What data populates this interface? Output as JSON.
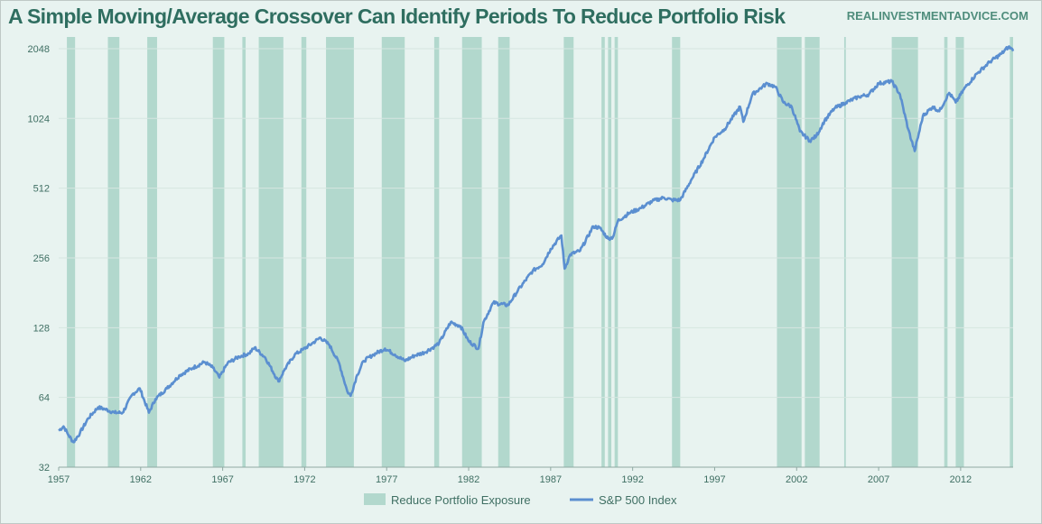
{
  "chart_data": {
    "type": "line",
    "title": "A Simple Moving/Average Crossover Can Identify Periods To Reduce Portfolio Risk",
    "source": "REALINVESTMENTADVICE.COM",
    "y_scale": "log2",
    "ylim": [
      32,
      2300
    ],
    "xlim": [
      1957,
      2015.2
    ],
    "x_ticks": [
      "1957",
      "1962",
      "1967",
      "1972",
      "1977",
      "1982",
      "1987",
      "1992",
      "1997",
      "2002",
      "2007",
      "2012"
    ],
    "y_ticks": [
      "2048",
      "1024",
      "512",
      "256",
      "128",
      "64",
      "32"
    ],
    "legend": [
      {
        "name": "Reduce Portfolio Exposure",
        "color": "#b2d8cd"
      },
      {
        "name": "S&P 500 Index",
        "color": "#5b8fd0"
      }
    ],
    "reduce_exposure_periods": [
      [
        1957.5,
        1958.0
      ],
      [
        1960.0,
        1960.7
      ],
      [
        1962.4,
        1963.0
      ],
      [
        1966.4,
        1967.1
      ],
      [
        1968.2,
        1968.4
      ],
      [
        1969.2,
        1970.7
      ],
      [
        1971.8,
        1972.1
      ],
      [
        1973.3,
        1975.0
      ],
      [
        1976.7,
        1978.1
      ],
      [
        1979.9,
        1980.2
      ],
      [
        1981.6,
        1982.8
      ],
      [
        1983.8,
        1984.5
      ],
      [
        1987.8,
        1988.4
      ],
      [
        1990.1,
        1990.3
      ],
      [
        1990.5,
        1990.7
      ],
      [
        1990.9,
        1991.1
      ],
      [
        1994.4,
        1994.9
      ],
      [
        2000.8,
        2002.3
      ],
      [
        2002.5,
        2003.4
      ],
      [
        2004.9,
        2005.0
      ],
      [
        2007.8,
        2009.4
      ],
      [
        2011.0,
        2011.2
      ],
      [
        2011.7,
        2012.2
      ],
      [
        2015.0,
        2015.2
      ]
    ],
    "series": [
      {
        "name": "S&P 500 Index",
        "x": [
          1957.0,
          1957.3,
          1957.6,
          1957.9,
          1958.3,
          1958.8,
          1959.4,
          1959.8,
          1960.4,
          1960.9,
          1961.5,
          1961.95,
          1962.5,
          1962.9,
          1963.6,
          1964.4,
          1965.2,
          1965.9,
          1966.4,
          1966.8,
          1967.3,
          1968.0,
          1968.6,
          1968.95,
          1969.6,
          1970.4,
          1970.8,
          1971.4,
          1971.9,
          1972.5,
          1972.95,
          1973.5,
          1974.1,
          1974.6,
          1974.8,
          1975.2,
          1975.6,
          1976.2,
          1976.9,
          1977.5,
          1978.1,
          1978.7,
          1979.3,
          1979.9,
          1980.2,
          1980.9,
          1981.5,
          1982.0,
          1982.6,
          1982.9,
          1983.5,
          1984.4,
          1985.0,
          1985.9,
          1986.5,
          1987.0,
          1987.65,
          1987.85,
          1988.2,
          1988.8,
          1989.6,
          1990.0,
          1990.5,
          1990.8,
          1991.1,
          1991.8,
          1992.5,
          1993.2,
          1993.9,
          1994.4,
          1994.9,
          1995.6,
          1996.3,
          1997.0,
          1997.6,
          1998.55,
          1998.75,
          1999.3,
          1999.9,
          2000.2,
          2000.7,
          2001.2,
          2001.7,
          2002.2,
          2002.8,
          2003.2,
          2003.7,
          2004.3,
          2005.0,
          2005.8,
          2006.4,
          2007.0,
          2007.8,
          2008.3,
          2008.8,
          2009.2,
          2009.7,
          2010.3,
          2010.7,
          2011.3,
          2011.7,
          2012.3,
          2013.0,
          2013.8,
          2014.5,
          2014.9,
          2015.1,
          2015.2
        ],
        "values": [
          46,
          48,
          44,
          41,
          45,
          52,
          58,
          57,
          55,
          55,
          66,
          70,
          55,
          63,
          70,
          80,
          86,
          91,
          86,
          78,
          90,
          96,
          99,
          105,
          95,
          75,
          85,
          98,
          103,
          110,
          116,
          108,
          90,
          68,
          65,
          80,
          92,
          98,
          104,
          98,
          92,
          97,
          100,
          106,
          110,
          135,
          130,
          112,
          104,
          135,
          164,
          160,
          185,
          225,
          240,
          280,
          320,
          230,
          265,
          275,
          350,
          345,
          310,
          315,
          370,
          400,
          420,
          450,
          466,
          455,
          455,
          560,
          680,
          850,
          920,
          1150,
          990,
          1300,
          1400,
          1450,
          1400,
          1200,
          1150,
          900,
          820,
          860,
          1000,
          1130,
          1200,
          1270,
          1300,
          1450,
          1480,
          1300,
          920,
          740,
          1050,
          1150,
          1100,
          1320,
          1200,
          1400,
          1600,
          1800,
          1950,
          2080,
          2050,
          2000
        ]
      }
    ]
  }
}
